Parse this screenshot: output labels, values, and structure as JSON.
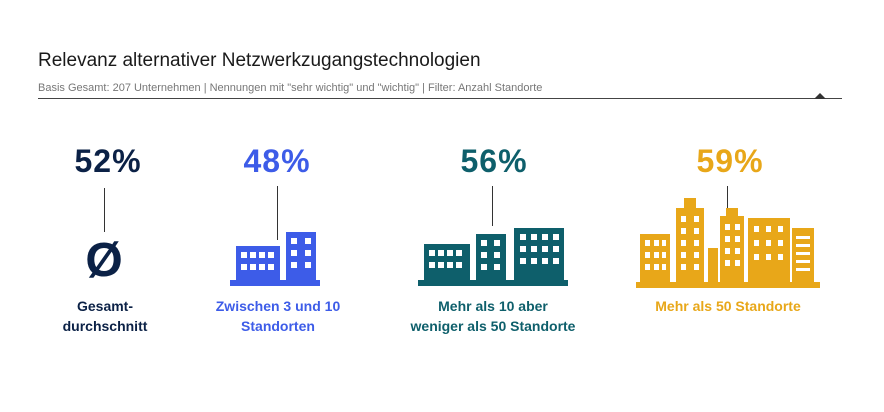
{
  "header": {
    "title": "Relevanz alternativer Netzwerkzugangstechnologien",
    "subtitle": "Basis Gesamt: 207 Unternehmen | Nennungen mit \"sehr wichtig\" und \"wichtig\" | Filter: Anzahl Standorte"
  },
  "chart_data": {
    "type": "bar",
    "categories": [
      "Gesamtdurchschnitt",
      "Zwischen 3 und 10 Standorten",
      "Mehr als 10 aber weniger als 50 Standorte",
      "Mehr als 50 Standorte"
    ],
    "values": [
      52,
      48,
      56,
      59
    ],
    "value_labels": [
      "52%",
      "48%",
      "56%",
      "59%"
    ],
    "label_lines": [
      [
        "Gesamt-",
        "durchschnitt"
      ],
      [
        "Zwischen 3 und 10",
        "Standorten"
      ],
      [
        "Mehr als 10 aber",
        "weniger als 50 Standorte"
      ],
      [
        "Mehr als 50 Standorte"
      ]
    ],
    "average_symbol": "Ø",
    "colors": [
      "#0b2146",
      "#3d5ce8",
      "#0e5f6b",
      "#e8a719"
    ],
    "unit": "%"
  }
}
